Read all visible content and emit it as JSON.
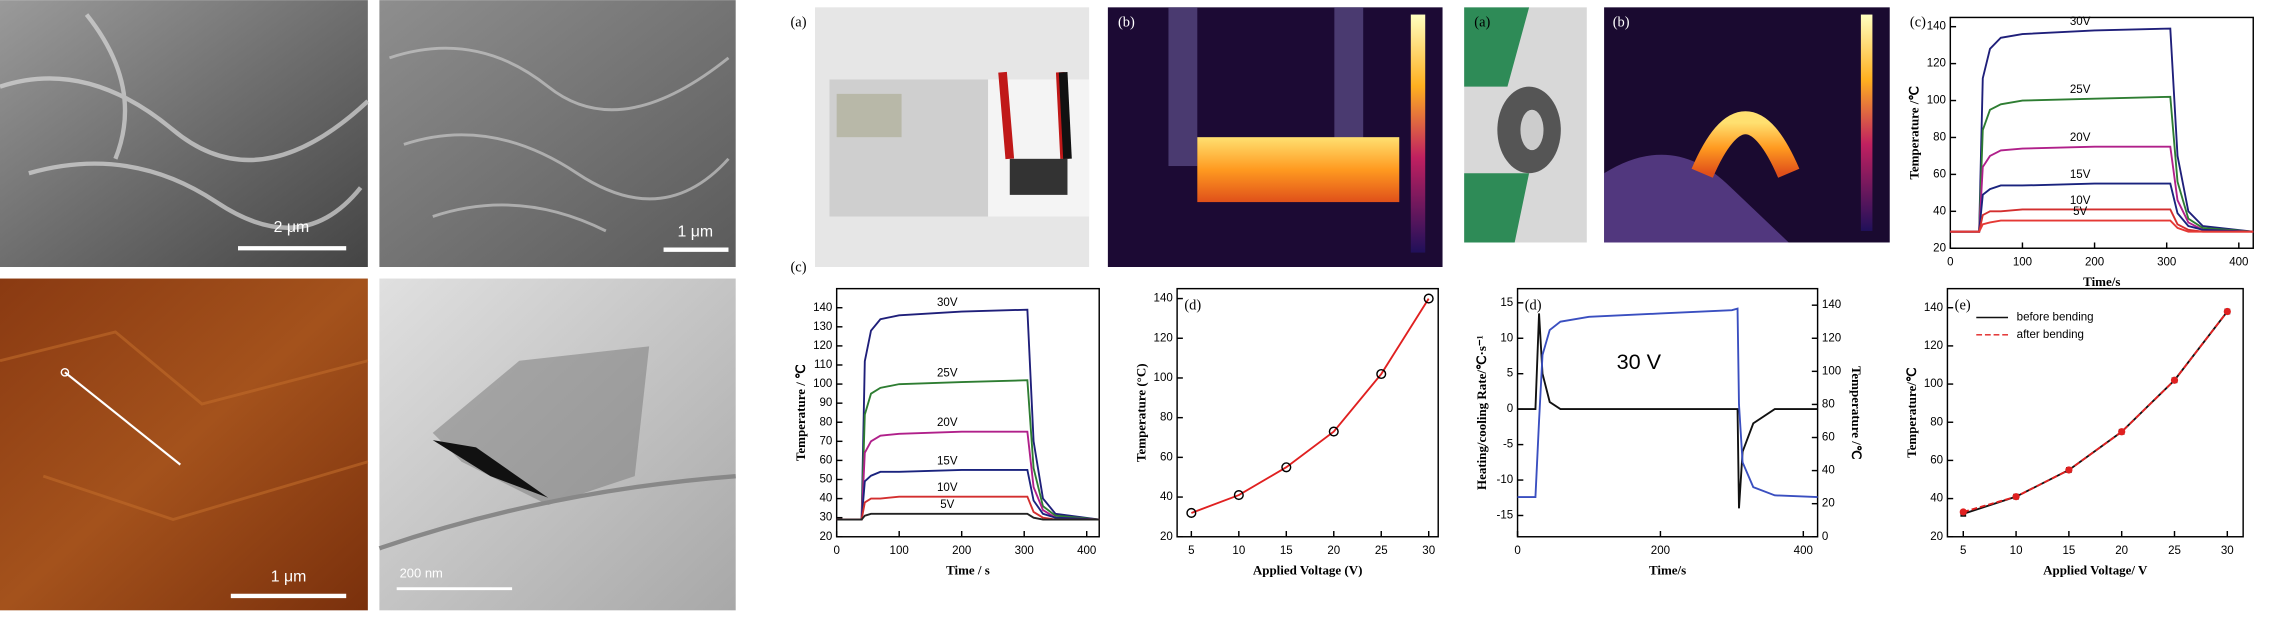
{
  "images": [
    {
      "scale_bar": "2 μm"
    },
    {
      "scale_bar": "1 μm"
    },
    {
      "scale_bar": "1 μm"
    },
    {
      "scale_bar": "200 nm"
    }
  ],
  "photos": [
    {
      "label": "(a)"
    },
    {
      "label": "(b)"
    },
    {
      "label": "(a)"
    },
    {
      "label": "(b)"
    }
  ],
  "chart_data": [
    {
      "type": "line",
      "panel_label": "(c)",
      "x_label": "Time/s",
      "y_label": "Temperature /℃",
      "series_labels": true,
      "xlim": [
        0,
        420
      ],
      "xticks": [
        0,
        100,
        200,
        300,
        400
      ],
      "ylim": [
        20,
        145
      ],
      "yticks": [
        20,
        40,
        60,
        80,
        100,
        120,
        140
      ],
      "x": [
        0,
        40,
        45,
        55,
        70,
        100,
        200,
        305,
        315,
        330,
        350,
        420
      ],
      "series": [
        {
          "name": "30V",
          "color": "#1f1f7a",
          "values": [
            29,
            29,
            112,
            128,
            134,
            136,
            138,
            139,
            70,
            40,
            32,
            29
          ]
        },
        {
          "name": "25V",
          "color": "#2e7d32",
          "values": [
            29,
            29,
            84,
            95,
            98,
            100,
            101,
            102,
            56,
            36,
            31,
            29
          ]
        },
        {
          "name": "20V",
          "color": "#b0208a",
          "values": [
            29,
            29,
            64,
            70,
            73,
            74,
            75,
            75,
            46,
            34,
            30,
            29
          ]
        },
        {
          "name": "15V",
          "color": "#1a237e",
          "values": [
            29,
            29,
            49,
            52,
            54,
            54,
            55,
            55,
            39,
            32,
            30,
            29
          ]
        },
        {
          "name": "10V",
          "color": "#d32f2f",
          "values": [
            29,
            29,
            38,
            40,
            40,
            41,
            41,
            41,
            33,
            30,
            29,
            29
          ]
        },
        {
          "name": "5V",
          "color": "#e53935",
          "values": [
            29,
            29,
            33,
            34,
            35,
            35,
            35,
            35,
            31,
            29,
            29,
            29
          ]
        }
      ]
    },
    {
      "type": "line",
      "panel_label": "(c)",
      "x_label": "Time / s",
      "y_label": "Temperature / ℃",
      "series_labels": true,
      "xlim": [
        0,
        420
      ],
      "xticks": [
        0,
        100,
        200,
        300,
        400
      ],
      "ylim": [
        20,
        150
      ],
      "yticks": [
        20,
        30,
        40,
        50,
        60,
        70,
        80,
        90,
        100,
        110,
        120,
        130,
        140
      ],
      "x": [
        0,
        40,
        45,
        55,
        70,
        100,
        200,
        305,
        315,
        330,
        350,
        420
      ],
      "series": [
        {
          "name": "30V",
          "color": "#1f1f7a",
          "values": [
            29,
            29,
            112,
            128,
            134,
            136,
            138,
            139,
            70,
            40,
            32,
            29
          ]
        },
        {
          "name": "25V",
          "color": "#2e7d32",
          "values": [
            29,
            29,
            84,
            95,
            98,
            100,
            101,
            102,
            56,
            36,
            31,
            29
          ]
        },
        {
          "name": "20V",
          "color": "#b0208a",
          "values": [
            29,
            29,
            64,
            70,
            73,
            74,
            75,
            75,
            46,
            34,
            30,
            29
          ]
        },
        {
          "name": "15V",
          "color": "#1a237e",
          "values": [
            29,
            29,
            49,
            52,
            54,
            54,
            55,
            55,
            39,
            32,
            30,
            29
          ]
        },
        {
          "name": "10V",
          "color": "#d32f2f",
          "values": [
            29,
            29,
            38,
            40,
            40,
            41,
            41,
            41,
            33,
            30,
            29,
            29
          ]
        },
        {
          "name": "5V",
          "color": "#222222",
          "values": [
            29,
            29,
            31,
            32,
            32,
            32,
            32,
            32,
            30,
            29,
            29,
            29
          ]
        }
      ]
    },
    {
      "type": "line",
      "panel_label": "(d)",
      "x_label": "Applied Voltage (V)",
      "y_label": "Temperature (°C)",
      "xlim": [
        3.5,
        31
      ],
      "xticks": [
        5,
        10,
        15,
        20,
        25,
        30
      ],
      "ylim": [
        20,
        145
      ],
      "yticks": [
        20,
        40,
        60,
        80,
        100,
        120,
        140
      ],
      "x": [
        5,
        10,
        15,
        20,
        25,
        30
      ],
      "series": [
        {
          "color": "#e02020",
          "marker": "circle",
          "marker_color": "#000000",
          "values": [
            32,
            41,
            55,
            73,
            102,
            140
          ]
        }
      ]
    },
    {
      "type": "line",
      "panel_label": "(d)",
      "x_label": "Time/s",
      "y_label": "Heating/cooling Rate/℃·s⁻¹",
      "y2_label": "Temperature /℃",
      "annotation": "30 V",
      "xlim": [
        0,
        420
      ],
      "xticks": [
        0,
        200,
        400
      ],
      "ylim": [
        -18,
        17
      ],
      "yticks": [
        -15,
        -10,
        -5,
        0,
        5,
        10,
        15
      ],
      "y2lim": [
        0,
        150
      ],
      "y2ticks": [
        0,
        20,
        40,
        60,
        80,
        100,
        120,
        140
      ],
      "x": [
        0,
        25,
        30,
        35,
        45,
        60,
        100,
        200,
        300,
        308,
        310,
        315,
        330,
        360,
        420
      ],
      "series": [
        {
          "color": "#111111",
          "values": [
            0,
            0,
            13.5,
            5,
            1,
            0,
            0,
            0,
            0,
            0,
            -14,
            -6,
            -2,
            0,
            0
          ]
        },
        {
          "color": "#3a4fc0",
          "axis": "y2",
          "values": [
            24,
            24,
            70,
            110,
            125,
            130,
            133,
            135,
            137,
            138,
            80,
            45,
            30,
            25,
            24
          ]
        }
      ]
    },
    {
      "type": "line",
      "panel_label": "(e)",
      "x_label": "Applied Voltage/ V",
      "y_label": "Temperature/℃",
      "legend": "upper left",
      "xlim": [
        3.5,
        31.5
      ],
      "xticks": [
        5,
        10,
        15,
        20,
        25,
        30
      ],
      "ylim": [
        20,
        150
      ],
      "yticks": [
        20,
        40,
        60,
        80,
        100,
        120,
        140
      ],
      "x": [
        5,
        10,
        15,
        20,
        25,
        30
      ],
      "series": [
        {
          "name": "before bending",
          "color": "#111111",
          "marker": "square",
          "values": [
            32,
            41,
            55,
            75,
            102,
            138
          ]
        },
        {
          "name": "after bending",
          "color": "#e02020",
          "marker": "circle",
          "linestyle": "dashed",
          "values": [
            33,
            41,
            55,
            75,
            102,
            138
          ]
        }
      ]
    }
  ]
}
